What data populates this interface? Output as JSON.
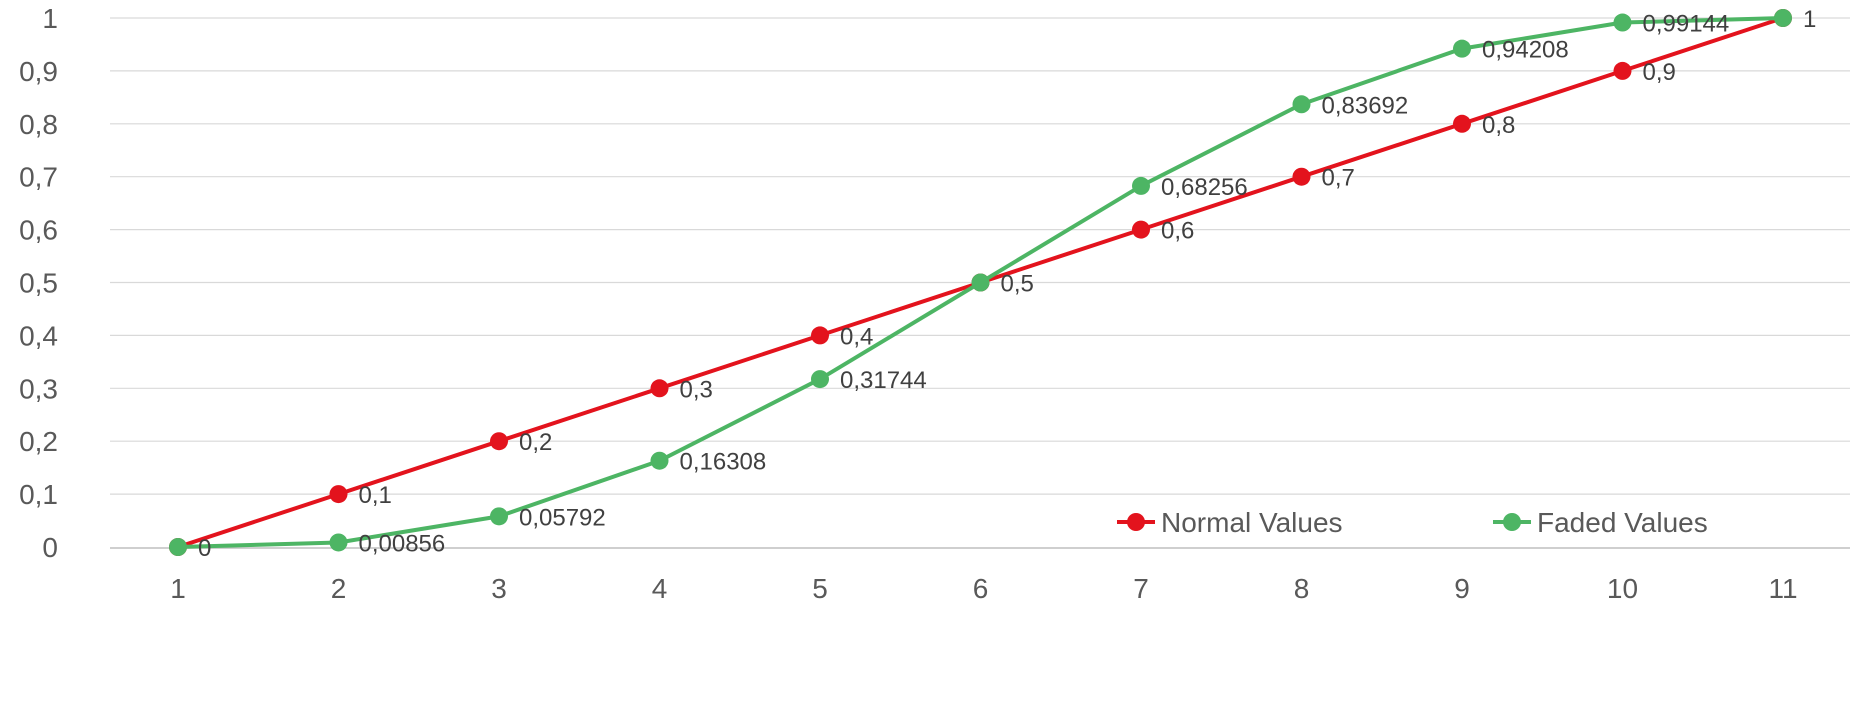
{
  "chart_data": {
    "type": "line",
    "title": "",
    "xlabel": "",
    "ylabel": "",
    "categories": [
      "1",
      "2",
      "3",
      "4",
      "5",
      "6",
      "7",
      "8",
      "9",
      "10",
      "11"
    ],
    "ylim": [
      0,
      1
    ],
    "yticks": [
      "0",
      "0,1",
      "0,2",
      "0,3",
      "0,4",
      "0,5",
      "0,6",
      "0,7",
      "0,8",
      "0,9",
      "1"
    ],
    "grid": true,
    "legend_position": "bottom-right",
    "series": [
      {
        "name": "Normal Values",
        "color": "#e3131d",
        "values": [
          0,
          0.1,
          0.2,
          0.3,
          0.4,
          0.5,
          0.6,
          0.7,
          0.8,
          0.9,
          1
        ],
        "labels": [
          "",
          "0,1",
          "0,2",
          "0,3",
          "0,4",
          "",
          "0,6",
          "0,7",
          "0,8",
          "0,9",
          ""
        ]
      },
      {
        "name": "Faded Values",
        "color": "#4db564",
        "values": [
          0,
          0.00856,
          0.05792,
          0.16308,
          0.31744,
          0.5,
          0.68256,
          0.83692,
          0.94208,
          0.99144,
          1
        ],
        "labels": [
          "0",
          "0,00856",
          "0,05792",
          "0,16308",
          "0,31744",
          "0,5",
          "0,68256",
          "0,83692",
          "0,94208",
          "0,99144",
          "1"
        ]
      }
    ]
  }
}
